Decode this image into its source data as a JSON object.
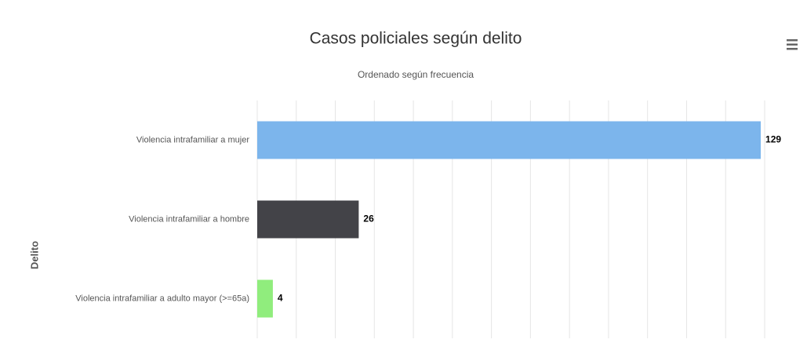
{
  "chart_data": {
    "type": "bar",
    "orientation": "horizontal",
    "title": "Casos policiales según delito",
    "subtitle": "Ordenado según frecuencia",
    "category_axis_title": "Delito",
    "categories": [
      "Violencia intrafamiliar a mujer",
      "Violencia intrafamiliar a hombre",
      "Violencia intrafamiliar a adulto mayor (>=65a)"
    ],
    "values": [
      129,
      26,
      4
    ],
    "colors": [
      "#7cb5ec",
      "#434348",
      "#90ed7d"
    ],
    "xlim": [
      0,
      130
    ],
    "xticks": [
      0,
      10,
      20,
      30,
      40,
      50,
      60,
      70,
      80,
      90,
      100,
      110,
      120,
      130
    ],
    "grid": true,
    "data_labels": true
  }
}
